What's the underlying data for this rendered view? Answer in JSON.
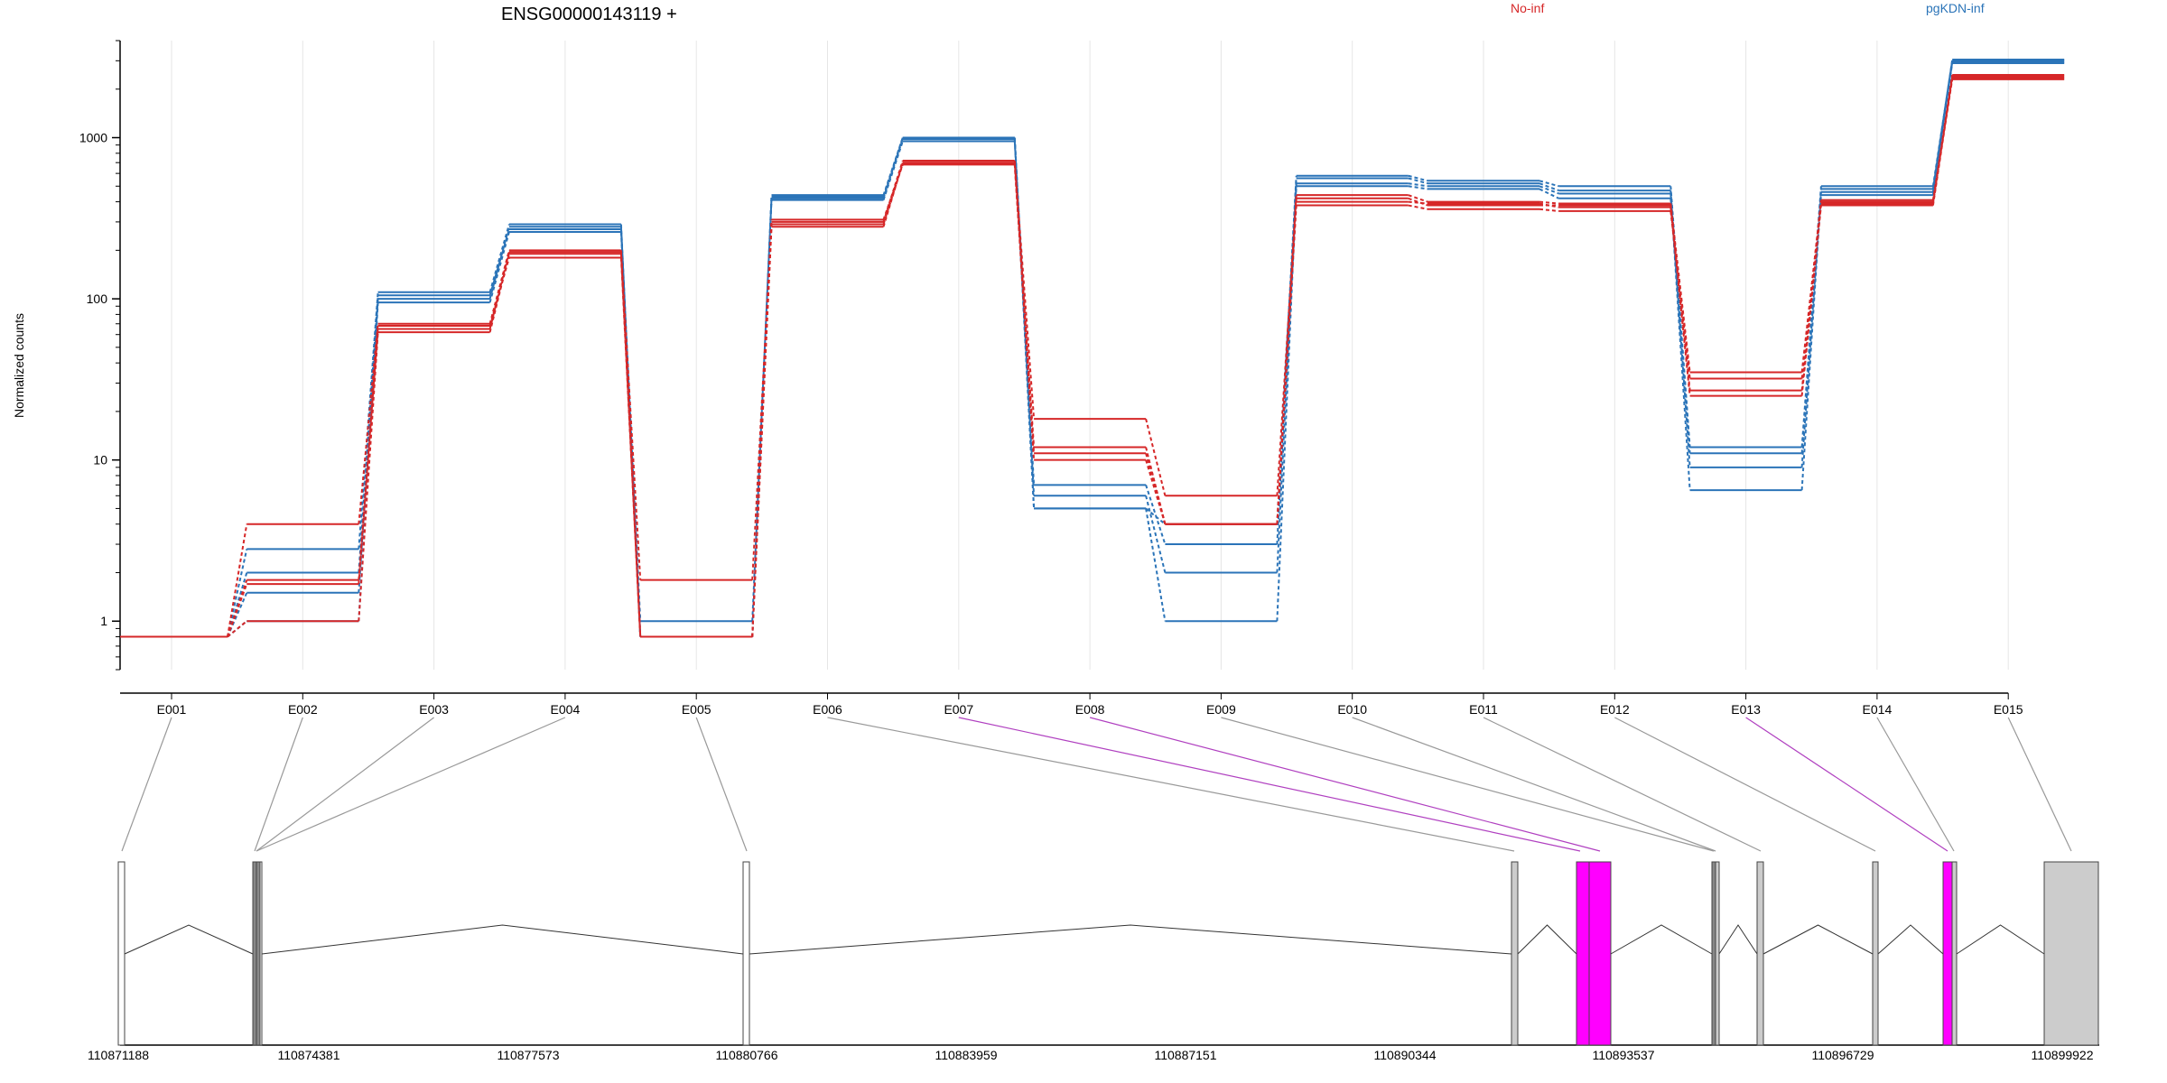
{
  "chart_data": {
    "type": "line",
    "title": "ENSG00000143119 +",
    "ylabel": "Normalized counts",
    "yscale": "log",
    "yticks": [
      1,
      10,
      100,
      1000
    ],
    "ytick_labels": [
      "1",
      "10",
      "100",
      "1000"
    ],
    "ylim": [
      0.5,
      4000
    ],
    "categories": [
      "E001",
      "E002",
      "E003",
      "E004",
      "E005",
      "E006",
      "E007",
      "E008",
      "E009",
      "E010",
      "E011",
      "E012",
      "E013",
      "E014",
      "E015"
    ],
    "legend": [
      {
        "name": "No-inf",
        "color": "#d62728"
      },
      {
        "name": "pgKDN-inf",
        "color": "#2b74b8"
      }
    ],
    "series": [
      {
        "group": "No-inf",
        "values": [
          0.8,
          4.0,
          70,
          200,
          1.8,
          300,
          720,
          18,
          6,
          440,
          400,
          390,
          35,
          400,
          2450
        ]
      },
      {
        "group": "No-inf",
        "values": [
          0.8,
          1.8,
          65,
          195,
          0.8,
          280,
          700,
          12,
          4,
          420,
          380,
          380,
          27,
          390,
          2400
        ]
      },
      {
        "group": "No-inf",
        "values": [
          0.8,
          1.0,
          62,
          190,
          0.8,
          290,
          690,
          11,
          4,
          400,
          390,
          370,
          25,
          380,
          2350
        ]
      },
      {
        "group": "No-inf",
        "values": [
          0.8,
          1.7,
          68,
          180,
          0.8,
          310,
          680,
          10,
          4,
          380,
          360,
          350,
          32,
          410,
          2300
        ]
      },
      {
        "group": "pgKDN-inf",
        "values": [
          0.8,
          2.8,
          110,
          290,
          0.8,
          430,
          1000,
          5,
          4,
          580,
          540,
          500,
          12,
          500,
          3000
        ]
      },
      {
        "group": "pgKDN-inf",
        "values": [
          0.8,
          2.0,
          105,
          270,
          1.0,
          420,
          980,
          7,
          3,
          560,
          520,
          470,
          9,
          480,
          3050
        ]
      },
      {
        "group": "pgKDN-inf",
        "values": [
          0.8,
          1.0,
          95,
          260,
          0.8,
          410,
          950,
          6,
          2,
          520,
          500,
          450,
          6.5,
          460,
          2950
        ]
      },
      {
        "group": "pgKDN-inf",
        "values": [
          0.8,
          1.5,
          100,
          280,
          0.8,
          440,
          1000,
          5,
          1,
          500,
          480,
          420,
          11,
          440,
          2900
        ]
      }
    ],
    "gene_model": {
      "coordinates": [
        "110871188",
        "110874381",
        "110877573",
        "110880766",
        "110883959",
        "110887151",
        "110890344",
        "110893537",
        "110896729",
        "110899922"
      ],
      "highlighted_exons": [
        "E007",
        "E008",
        "E013"
      ],
      "highlight_color": "#ff00ff",
      "exon_color": "#ffffff",
      "utr_color": "#cccccc"
    }
  }
}
